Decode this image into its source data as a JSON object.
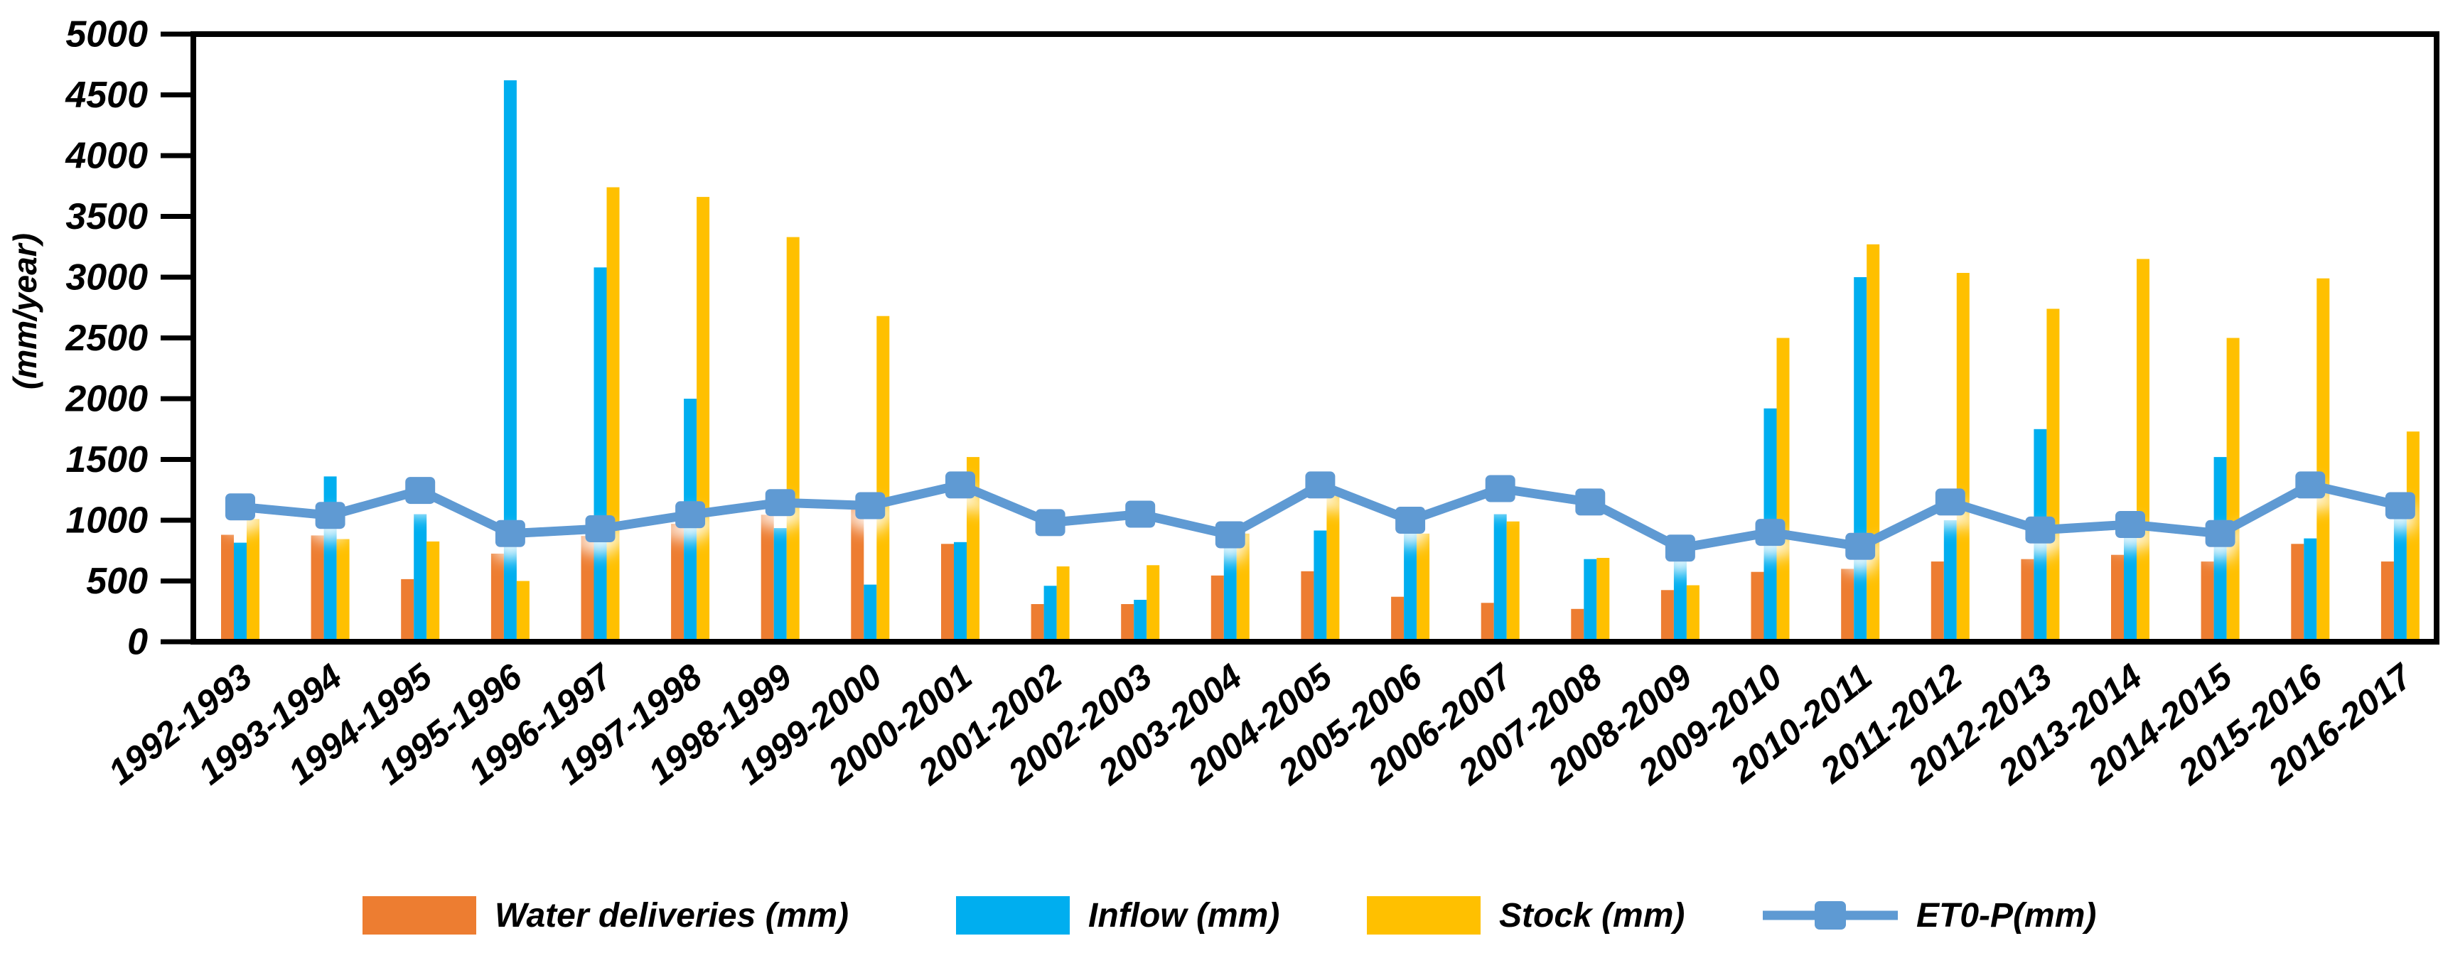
{
  "figure": {
    "ylabel": "(mm/year)",
    "background_color": "#FFFFFF",
    "axis_color": "#000000"
  },
  "chart_data": {
    "type": "bar",
    "subtype": "grouped-bars-with-line-overlay",
    "title": "",
    "xlabel": "",
    "ylabel": "(mm/year)",
    "ylim": [
      0,
      5000
    ],
    "ytick_step": 500,
    "grid": false,
    "legend_position": "bottom",
    "categories": [
      "1992-1993",
      "1993-1994",
      "1994-1995",
      "1995-1996",
      "1996-1997",
      "1997-1998",
      "1998-1999",
      "1999-2000",
      "2000-2001",
      "2001-2002",
      "2002-2003",
      "2003-2004",
      "2004-2005",
      "2005-2006",
      "2006-2007",
      "2007-2008",
      "2008-2009",
      "2009-2010",
      "2010-2011",
      "2011-2012",
      "2012-2013",
      "2013-2014",
      "2014-2015",
      "2015-2016",
      "2016-2017"
    ],
    "series": [
      {
        "name": "Water deliveries (mm)",
        "type": "bar",
        "color": "#ED7D31",
        "values": [
          880,
          875,
          515,
          725,
          870,
          970,
          1045,
          1090,
          805,
          310,
          310,
          545,
          580,
          370,
          320,
          270,
          425,
          575,
          600,
          660,
          680,
          715,
          660,
          805,
          660
        ]
      },
      {
        "name": "Inflow (mm)",
        "type": "bar",
        "color": "#00AEEF",
        "values": [
          815,
          1360,
          1050,
          4620,
          3080,
          2000,
          935,
          470,
          820,
          460,
          345,
          780,
          915,
          940,
          1050,
          680,
          700,
          1920,
          3000,
          1000,
          1750,
          960,
          1520,
          850,
          1030
        ]
      },
      {
        "name": "Stock (mm)",
        "type": "bar",
        "color": "#FFC000",
        "values": [
          1010,
          845,
          825,
          500,
          3740,
          3660,
          3330,
          2680,
          1520,
          620,
          630,
          890,
          1260,
          890,
          990,
          690,
          465,
          2500,
          3270,
          3035,
          2740,
          3150,
          2500,
          2990,
          1730
        ]
      },
      {
        "name": "ET0-P(mm)",
        "type": "line",
        "color": "#5E9AD3",
        "marker": "rounded-square",
        "values": [
          1110,
          1040,
          1245,
          890,
          930,
          1045,
          1145,
          1120,
          1290,
          980,
          1050,
          880,
          1290,
          1000,
          1260,
          1150,
          770,
          900,
          785,
          1150,
          920,
          965,
          890,
          1290,
          1120
        ]
      }
    ]
  }
}
